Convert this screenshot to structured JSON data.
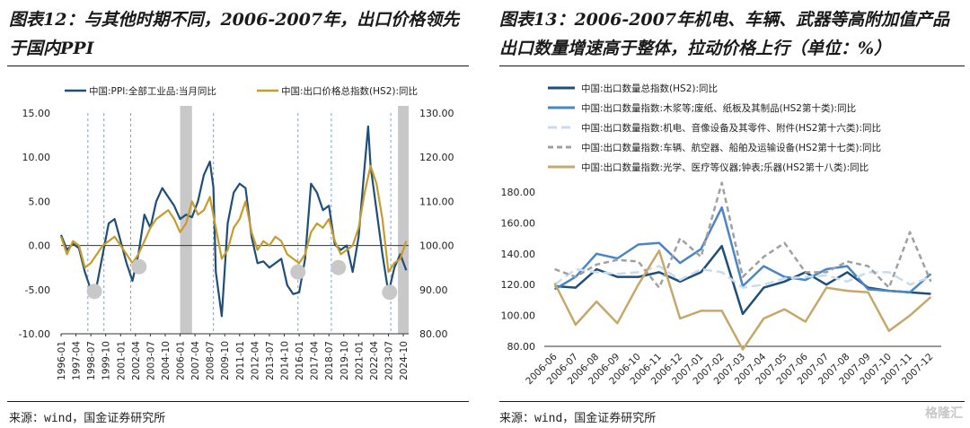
{
  "left": {
    "title_line1": "图表12：与其他时期不同，2006-2007年，出口价格领先",
    "title_line2": "于国内PPI",
    "source": "来源：wind，国金证券研究所",
    "chart_data": {
      "type": "line",
      "series": [
        {
          "name": "中国:PPI:全部工业品:当月同比",
          "color": "#1f4e79",
          "axis": "left",
          "x": [
            1996.0,
            1996.5,
            1997.0,
            1997.5,
            1998.0,
            1998.5,
            1999.0,
            1999.5,
            2000.0,
            2000.5,
            2001.0,
            2001.5,
            2002.0,
            2002.5,
            2003.0,
            2003.5,
            2004.0,
            2004.5,
            2005.0,
            2005.5,
            2006.0,
            2006.5,
            2007.0,
            2007.5,
            2008.0,
            2008.5,
            2008.8,
            2009.0,
            2009.5,
            2010.0,
            2010.5,
            2011.0,
            2011.5,
            2012.0,
            2012.5,
            2013.0,
            2013.5,
            2014.0,
            2014.5,
            2015.0,
            2015.5,
            2016.0,
            2016.5,
            2017.0,
            2017.5,
            2018.0,
            2018.5,
            2019.0,
            2019.5,
            2020.0,
            2020.5,
            2021.0,
            2021.5,
            2021.8,
            2022.0,
            2022.5,
            2023.0,
            2023.5,
            2024.0,
            2024.5,
            2025.0
          ],
          "values": [
            1.2,
            -0.5,
            0.2,
            -0.3,
            -3.0,
            -5.0,
            -4.5,
            -1.0,
            2.5,
            3.0,
            0.5,
            -2.0,
            -4.0,
            -1.0,
            3.5,
            2.0,
            5.0,
            6.5,
            5.5,
            4.5,
            3.0,
            3.5,
            3.2,
            5.0,
            8.0,
            9.5,
            6.6,
            -3.0,
            -8.0,
            2.5,
            6.0,
            7.0,
            6.5,
            1.0,
            -2.0,
            -1.8,
            -2.5,
            -2.0,
            -1.5,
            -4.5,
            -5.5,
            -5.3,
            -1.5,
            7.0,
            6.0,
            4.0,
            4.5,
            0.1,
            -0.5,
            0.0,
            -3.0,
            1.0,
            9.0,
            13.5,
            9.0,
            4.0,
            -1.0,
            -5.4,
            -2.5,
            -1.0,
            -2.8
          ]
        },
        {
          "name": "中国:出口价格总指数(HS2):同比",
          "color": "#c69c2d",
          "axis": "right",
          "x": [
            1996.0,
            1996.5,
            1997.0,
            1997.5,
            1998.0,
            1998.5,
            1999.0,
            1999.5,
            2000.0,
            2000.5,
            2001.0,
            2001.5,
            2002.0,
            2002.5,
            2003.0,
            2003.5,
            2004.0,
            2004.5,
            2005.0,
            2005.5,
            2006.0,
            2006.5,
            2007.0,
            2007.5,
            2008.0,
            2008.5,
            2009.0,
            2009.5,
            2010.0,
            2010.5,
            2011.0,
            2011.5,
            2012.0,
            2012.5,
            2013.0,
            2013.5,
            2014.0,
            2014.5,
            2015.0,
            2015.5,
            2016.0,
            2016.5,
            2017.0,
            2017.5,
            2018.0,
            2018.5,
            2019.0,
            2019.5,
            2020.0,
            2020.5,
            2021.0,
            2021.5,
            2022.0,
            2022.5,
            2023.0,
            2023.5,
            2024.0,
            2024.5,
            2025.0
          ],
          "values": [
            102,
            98,
            101,
            100,
            95,
            96,
            98,
            100,
            101,
            102,
            100,
            98,
            96,
            98,
            101,
            104,
            106,
            107,
            108,
            106,
            103,
            105,
            110,
            107,
            108,
            111,
            104,
            97,
            99,
            104,
            106,
            110,
            103,
            99,
            101,
            100,
            102,
            101,
            98,
            97,
            96,
            98,
            103,
            105,
            104,
            106,
            101,
            98,
            99,
            100,
            104,
            112,
            118,
            114,
            106,
            94,
            96,
            97,
            101
          ]
        }
      ],
      "y_left": {
        "min": -10,
        "max": 15,
        "ticks": [
          "15.00",
          "10.00",
          "5.00",
          "0.00",
          "-5.00",
          "-10.00"
        ]
      },
      "y_right": {
        "min": 80,
        "max": 130,
        "ticks": [
          "130.00",
          "120.00",
          "110.00",
          "100.00",
          "90.00",
          "80.00"
        ]
      },
      "x_range": [
        1996.0,
        2025.2
      ],
      "x_ticks": [
        "1996-01",
        "1997-04",
        "1998-07",
        "1999-10",
        "2001-01",
        "2002-04",
        "2003-07",
        "2004-10",
        "2006-01",
        "2007-04",
        "2008-07",
        "2009-10",
        "2011-01",
        "2012-04",
        "2013-07",
        "2014-10",
        "2016-01",
        "2017-04",
        "2018-07",
        "2019-10",
        "2021-01",
        "2022-04",
        "2023-07",
        "2024-10"
      ],
      "x_tick_values": [
        1996.0,
        1997.25,
        1998.5,
        1999.75,
        2001.0,
        2002.25,
        2003.5,
        2004.75,
        2006.0,
        2007.25,
        2008.5,
        2009.75,
        2011.0,
        2012.25,
        2013.5,
        2014.75,
        2016.0,
        2017.25,
        2018.5,
        2019.75,
        2021.0,
        2022.25,
        2023.5,
        2024.75
      ],
      "shaded_periods": [
        [
          2006.0,
          2007.0
        ],
        [
          2024.3,
          2025.2
        ]
      ],
      "dashed_lines": [
        1998.25,
        1999.6,
        2001.85,
        2008.8,
        2015.9,
        2018.7,
        2023.7
      ],
      "markers": [
        [
          1998.8,
          -5.2
        ],
        [
          2002.55,
          -2.4
        ],
        [
          2015.9,
          -3.0
        ],
        [
          2019.3,
          -2.5
        ],
        [
          2023.6,
          -5.3
        ]
      ]
    }
  },
  "right": {
    "title_line1": "图表13：2006-2007年机电、车辆、武器等高附加值产品",
    "title_line2": "出口数量增速高于整体，拉动价格上行（单位：%）",
    "source": "来源：wind，国金证券研究所",
    "watermark": "格隆汇",
    "chart_data": {
      "type": "line",
      "categories": [
        "2006-06",
        "2006-07",
        "2006-08",
        "2006-09",
        "2006-10",
        "2006-11",
        "2006-12",
        "2007-01",
        "2007-02",
        "2007-03",
        "2007-04",
        "2007-05",
        "2007-06",
        "2007-07",
        "2007-08",
        "2007-09",
        "2007-10",
        "2007-11",
        "2007-12"
      ],
      "ylim": [
        80,
        180
      ],
      "y_ticks": [
        "180.00",
        "160.00",
        "140.00",
        "120.00",
        "100.00",
        "80.00"
      ],
      "series": [
        {
          "name": "中国:出口数量总指数(HS2):同比",
          "color": "#1f4e79",
          "dash": "",
          "width": 2.5,
          "values": [
            119,
            118,
            130,
            125,
            125,
            128,
            122,
            128,
            145,
            101,
            118,
            122,
            128,
            120,
            128,
            118,
            116,
            115,
            114
          ]
        },
        {
          "name": "中国:出口数量指数:木浆等;废纸、纸板及其制品(HS2第十类):同比",
          "color": "#4a86c5",
          "dash": "",
          "width": 2.5,
          "values": [
            117,
            125,
            140,
            137,
            146,
            147,
            134,
            143,
            170,
            119,
            132,
            125,
            123,
            130,
            132,
            117,
            116,
            115,
            127
          ]
        },
        {
          "name": "中国:出口数量指数:机电、音像设备及其零件、附件(HS2第十六类):同比",
          "color": "#c7dcef",
          "dash": "10,5",
          "width": 2.5,
          "values": [
            120,
            130,
            128,
            127,
            128,
            132,
            123,
            130,
            128,
            118,
            120,
            124,
            125,
            126,
            122,
            128,
            128,
            120,
            125
          ]
        },
        {
          "name": "中国:出口数量指数:车辆、航空器、船舶及运输设备(HS2第十七类):同比",
          "color": "#a0a0a0",
          "dash": "6,4",
          "width": 2.5,
          "values": [
            130,
            125,
            133,
            136,
            135,
            118,
            150,
            138,
            186,
            125,
            138,
            147,
            128,
            128,
            135,
            132,
            118,
            154,
            122
          ]
        },
        {
          "name": "中国:出口数量指数:光学、医疗等仪器;钟表;乐器(HS2第十八类):同比",
          "color": "#c6a86a",
          "dash": "",
          "width": 2.5,
          "values": [
            121,
            94,
            109,
            95,
            120,
            142,
            98,
            103,
            103,
            78,
            98,
            104,
            96,
            118,
            116,
            115,
            90,
            100,
            112
          ]
        }
      ]
    }
  }
}
